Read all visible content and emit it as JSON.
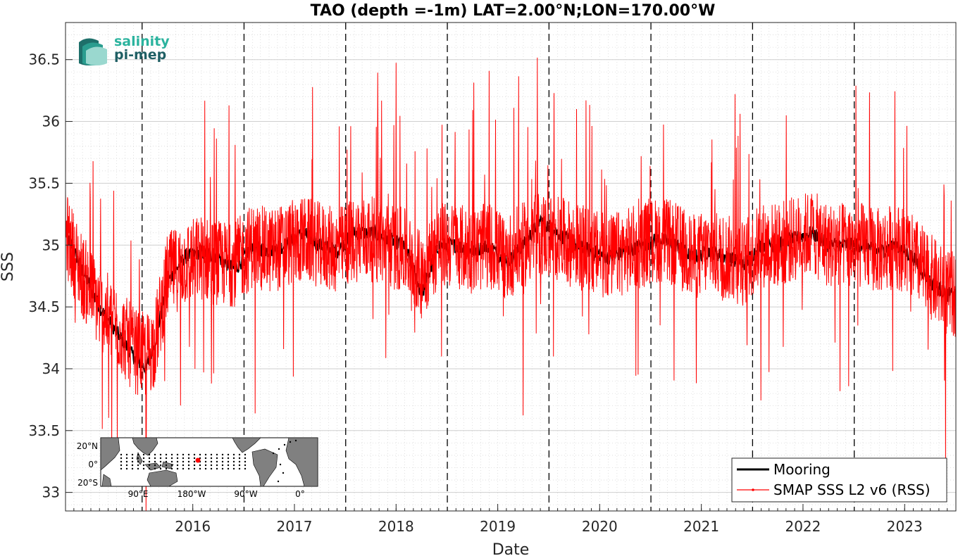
{
  "chart_data": {
    "type": "line",
    "title": "TAO (depth =-1m) LAT=2.00°N;LON=170.00°W",
    "xlabel": "Date",
    "ylabel": "SSS",
    "xlim": [
      "2015-04-01",
      "2024-01-01"
    ],
    "ylim": [
      32.85,
      36.8
    ],
    "x_ticks": [
      "2016",
      "2017",
      "2018",
      "2019",
      "2020",
      "2021",
      "2022",
      "2023"
    ],
    "y_ticks": [
      33,
      33.5,
      34,
      34.5,
      35,
      35.5,
      36,
      36.5
    ],
    "grid": true,
    "year_boundaries_dashed": [
      "2016-01-01",
      "2017-01-01",
      "2018-01-01",
      "2019-01-01",
      "2020-01-01",
      "2021-01-01",
      "2022-01-01",
      "2023-01-01"
    ],
    "legend_position": "bottom-right",
    "series": [
      {
        "name": "Mooring",
        "color": "#000000",
        "x": [
          "2015-04-01",
          "2015-06-01",
          "2015-08-01",
          "2015-10-01",
          "2015-12-01",
          "2016-01-15",
          "2016-02-15",
          "2016-04-01",
          "2016-06-01",
          "2016-08-01",
          "2016-10-01",
          "2016-12-01",
          "2017-02-01",
          "2017-04-01",
          "2017-06-01",
          "2017-08-01",
          "2017-10-01",
          "2017-12-01",
          "2018-02-01",
          "2018-04-01",
          "2018-06-01",
          "2018-08-01",
          "2018-10-01",
          "2018-12-01",
          "2019-02-01",
          "2019-04-01",
          "2019-06-01",
          "2019-08-01",
          "2019-10-01",
          "2019-12-01",
          "2020-02-01",
          "2020-04-01",
          "2020-06-01",
          "2020-08-01",
          "2020-10-01",
          "2020-12-01",
          "2021-02-01",
          "2021-04-01",
          "2021-06-01",
          "2021-08-01",
          "2021-10-01",
          "2021-12-01",
          "2022-02-01",
          "2022-04-01",
          "2022-06-01",
          "2022-08-01",
          "2022-10-01",
          "2022-12-01",
          "2023-02-01",
          "2023-04-01",
          "2023-06-01",
          "2023-08-01",
          "2023-10-01",
          "2023-12-01"
        ],
        "y": [
          35.1,
          34.8,
          34.5,
          34.3,
          34.1,
          34.0,
          34.2,
          34.7,
          34.9,
          34.95,
          34.9,
          34.8,
          35.0,
          34.95,
          35.0,
          35.1,
          35.0,
          34.95,
          35.1,
          35.1,
          35.05,
          35.0,
          34.6,
          35.0,
          35.0,
          34.95,
          35.0,
          34.85,
          35.0,
          35.2,
          35.1,
          35.0,
          34.95,
          34.9,
          34.95,
          35.0,
          35.05,
          35.0,
          34.9,
          34.95,
          34.9,
          34.85,
          35.0,
          35.0,
          35.05,
          35.1,
          35.0,
          35.0,
          35.0,
          34.95,
          35.0,
          34.9,
          34.7,
          34.6
        ]
      },
      {
        "name": "SMAP SSS L2 v6 (RSS)",
        "color": "#ff0000",
        "x": [
          "2015-04-01",
          "2015-06-01",
          "2015-08-01",
          "2015-10-01",
          "2015-12-01",
          "2016-01-15",
          "2016-02-15",
          "2016-04-01",
          "2016-06-01",
          "2016-08-01",
          "2016-10-01",
          "2016-12-01",
          "2017-02-01",
          "2017-04-01",
          "2017-06-01",
          "2017-08-01",
          "2017-10-01",
          "2017-12-01",
          "2018-02-01",
          "2018-04-01",
          "2018-06-01",
          "2018-08-01",
          "2018-10-01",
          "2018-12-01",
          "2019-02-01",
          "2019-04-01",
          "2019-06-01",
          "2019-08-01",
          "2019-10-01",
          "2019-12-01",
          "2020-02-01",
          "2020-04-01",
          "2020-06-01",
          "2020-08-01",
          "2020-10-01",
          "2020-12-01",
          "2021-02-01",
          "2021-04-01",
          "2021-06-01",
          "2021-08-01",
          "2021-10-01",
          "2021-12-01",
          "2022-02-01",
          "2022-04-01",
          "2022-06-01",
          "2022-08-01",
          "2022-10-01",
          "2022-12-01",
          "2023-02-01",
          "2023-04-01",
          "2023-06-01",
          "2023-08-01",
          "2023-10-01",
          "2023-12-01"
        ],
        "y": [
          35.1,
          34.75,
          34.5,
          34.35,
          34.15,
          34.1,
          34.2,
          34.75,
          34.85,
          34.9,
          34.85,
          34.85,
          35.0,
          34.95,
          35.0,
          35.05,
          35.0,
          34.95,
          35.05,
          35.05,
          35.0,
          34.95,
          34.75,
          35.0,
          35.0,
          34.95,
          35.0,
          34.9,
          35.0,
          35.1,
          35.05,
          35.0,
          34.95,
          34.9,
          34.95,
          35.0,
          35.05,
          35.0,
          34.9,
          34.95,
          34.9,
          34.85,
          35.0,
          35.0,
          35.05,
          35.1,
          35.0,
          35.0,
          35.0,
          34.95,
          35.0,
          34.9,
          34.75,
          34.6
        ],
        "variability_envelope": 0.35
      }
    ],
    "inset_map": {
      "lat_ticks": [
        "20°N",
        "0°",
        "20°S"
      ],
      "lon_ticks": [
        "90°E",
        "180°W",
        "90°W",
        "0°"
      ]
    }
  },
  "logo": {
    "line1": "salinity",
    "line2": "pi-mep"
  }
}
